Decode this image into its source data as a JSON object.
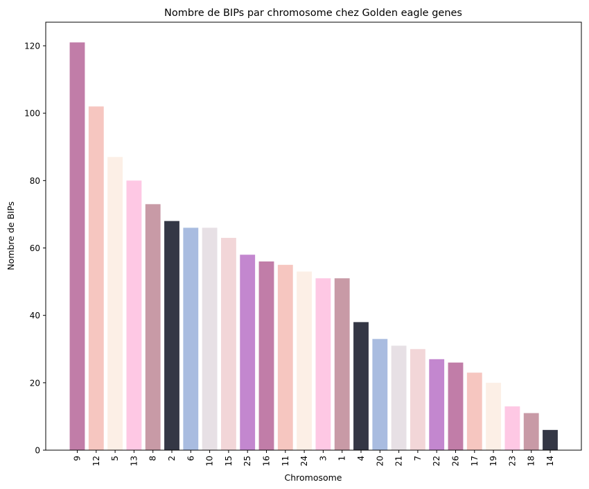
{
  "chart_data": {
    "type": "bar",
    "title": "Nombre de BIPs par chromosome chez Golden eagle genes",
    "xlabel": "Chromosome",
    "ylabel": "Nombre de BIPs",
    "categories": [
      "9",
      "12",
      "5",
      "13",
      "8",
      "2",
      "6",
      "10",
      "15",
      "25",
      "16",
      "11",
      "24",
      "3",
      "1",
      "4",
      "20",
      "21",
      "7",
      "22",
      "26",
      "17",
      "19",
      "23",
      "18",
      "14"
    ],
    "values": [
      121,
      102,
      87,
      80,
      73,
      68,
      66,
      66,
      63,
      58,
      56,
      55,
      53,
      51,
      51,
      38,
      33,
      31,
      30,
      27,
      26,
      23,
      20,
      13,
      11,
      6
    ],
    "colors": [
      "#c17da8",
      "#f6c6c0",
      "#fcefe6",
      "#fec8e4",
      "#c89aa6",
      "#343745",
      "#a9bce0",
      "#e7e0e5",
      "#f2d6d8",
      "#c387cf",
      "#c17da8",
      "#f6c6c0",
      "#fcefe6",
      "#fec8e4",
      "#c89aa6",
      "#343745",
      "#a9bce0",
      "#e7e0e5",
      "#f2d6d8",
      "#c387cf",
      "#c17da8",
      "#f6c6c0",
      "#fcefe6",
      "#fec8e4",
      "#c89aa6",
      "#343745"
    ],
    "yticks": [
      0,
      20,
      40,
      60,
      80,
      100,
      120
    ],
    "ylim": [
      0,
      127
    ],
    "grid": false,
    "legend": "none"
  }
}
